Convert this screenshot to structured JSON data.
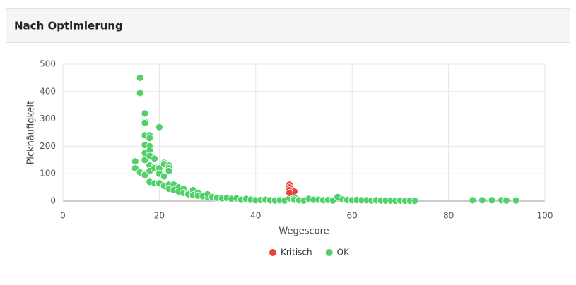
{
  "chart_data": {
    "type": "scatter",
    "title": "Nach Optimierung",
    "xlabel": "Wegescore",
    "ylabel": "Pickhäufigkeit",
    "xlim": [
      0,
      100
    ],
    "xticks": [
      0,
      20,
      40,
      60,
      80,
      100
    ],
    "ylim": [
      0,
      500
    ],
    "yticks": [
      0,
      100,
      200,
      300,
      400,
      500
    ],
    "grid": true,
    "legend": "bottom",
    "series": [
      {
        "name": "Kritisch",
        "color": "#e8453c",
        "x": [
          47,
          47,
          47,
          48,
          47
        ],
        "values": [
          60,
          50,
          40,
          35,
          30
        ]
      },
      {
        "name": "OK",
        "color": "#52d06a",
        "x": [
          15,
          15,
          16,
          16,
          16,
          17,
          17,
          17,
          17,
          17,
          17,
          17,
          17,
          17,
          18,
          18,
          18,
          18,
          18,
          18,
          18,
          18,
          19,
          19,
          19,
          19,
          20,
          20,
          20,
          20,
          21,
          21,
          21,
          21,
          22,
          22,
          22,
          22,
          22,
          23,
          23,
          24,
          24,
          25,
          25,
          26,
          26,
          27,
          27,
          28,
          28,
          29,
          30,
          30,
          31,
          32,
          33,
          34,
          35,
          36,
          37,
          38,
          39,
          40,
          41,
          42,
          43,
          44,
          45,
          46,
          47,
          48,
          48,
          49,
          50,
          51,
          52,
          53,
          54,
          55,
          56,
          57,
          58,
          59,
          60,
          61,
          62,
          63,
          64,
          65,
          66,
          67,
          68,
          69,
          70,
          71,
          72,
          73,
          85,
          87,
          89,
          91,
          92,
          94
        ],
        "values": [
          145,
          120,
          450,
          395,
          105,
          320,
          290,
          285,
          240,
          205,
          175,
          150,
          100,
          95,
          240,
          230,
          200,
          185,
          165,
          130,
          110,
          70,
          155,
          125,
          120,
          65,
          270,
          120,
          100,
          65,
          140,
          135,
          90,
          55,
          130,
          120,
          110,
          60,
          45,
          60,
          40,
          50,
          35,
          45,
          30,
          30,
          25,
          40,
          22,
          30,
          20,
          18,
          15,
          25,
          15,
          12,
          10,
          12,
          8,
          10,
          5,
          8,
          5,
          3,
          4,
          5,
          3,
          2,
          3,
          2,
          10,
          15,
          5,
          3,
          2,
          8,
          5,
          5,
          3,
          4,
          2,
          15,
          6,
          4,
          3,
          4,
          3,
          3,
          2,
          3,
          2,
          2,
          2,
          1,
          2,
          1,
          1,
          1,
          3,
          3,
          3,
          3,
          2,
          2
        ]
      }
    ]
  }
}
